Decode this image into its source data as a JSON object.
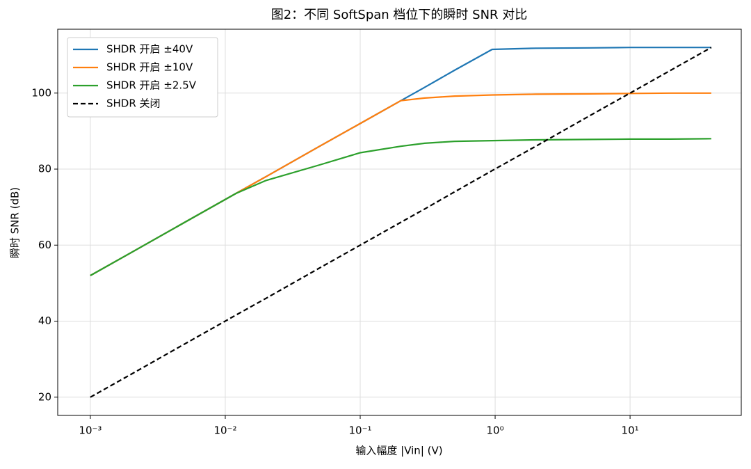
{
  "chart_data": {
    "type": "line",
    "title": "图2：不同 SoftSpan 档位下的瞬时 SNR 对比",
    "xlabel": "输入幅度 |Vin| (V)",
    "ylabel": "瞬时 SNR (dB)",
    "xscale": "log",
    "x": [
      0.001,
      0.002,
      0.005,
      0.012,
      0.02,
      0.05,
      0.1,
      0.2,
      0.3,
      0.5,
      0.95,
      2,
      5,
      10,
      20,
      40
    ],
    "series": [
      {
        "name": "SHDR 开启 ±40V",
        "color": "#1f77b4",
        "linestyle": "solid",
        "values": [
          52,
          58,
          66,
          73.6,
          78,
          86,
          92,
          98,
          101.5,
          106,
          111.5,
          111.8,
          111.9,
          112,
          112,
          112
        ]
      },
      {
        "name": "SHDR 开启 ±10V",
        "color": "#ff7f0e",
        "linestyle": "solid",
        "values": [
          52,
          58,
          66,
          73.6,
          78,
          86,
          92,
          98,
          98.7,
          99.2,
          99.5,
          99.7,
          99.8,
          99.9,
          100,
          100
        ]
      },
      {
        "name": "SHDR 开启 ±2.5V",
        "color": "#2ca02c",
        "linestyle": "solid",
        "values": [
          52,
          58,
          66,
          73.6,
          77,
          81.1,
          84.3,
          86,
          86.8,
          87.3,
          87.5,
          87.7,
          87.8,
          87.9,
          87.9,
          88
        ]
      },
      {
        "name": "SHDR 关闭",
        "color": "#000000",
        "linestyle": "dashed",
        "values": [
          20,
          26,
          34,
          41.6,
          46,
          54,
          60,
          66,
          69.5,
          74,
          79.6,
          86,
          94,
          100,
          106,
          112
        ]
      }
    ],
    "xlim": [
      0.000573,
      66.7
    ],
    "ylim": [
      15.2,
      116.8
    ],
    "xticks": [
      {
        "value": 0.001,
        "label": "10⁻³"
      },
      {
        "value": 0.01,
        "label": "10⁻²"
      },
      {
        "value": 0.1,
        "label": "10⁻¹"
      },
      {
        "value": 1,
        "label": "10⁰"
      },
      {
        "value": 10,
        "label": "10¹"
      }
    ],
    "yticks": [
      20,
      40,
      60,
      80,
      100
    ],
    "grid": true,
    "legend": "upper-left"
  }
}
